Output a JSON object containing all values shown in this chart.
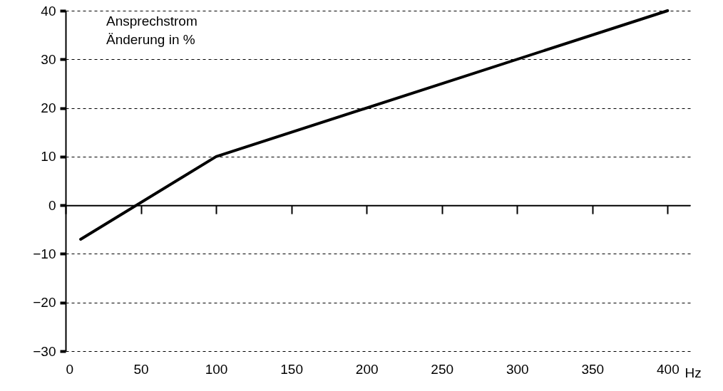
{
  "chart_data": {
    "type": "line",
    "ylabel": "Ansprechstrom\nÄnderung in %",
    "xlabel": "Hz",
    "x": [
      10,
      100,
      400
    ],
    "series": [
      {
        "color": "#000000",
        "values": [
          -7,
          10,
          40
        ]
      }
    ],
    "xlim": [
      0,
      415
    ],
    "xticks": [
      0,
      50,
      100,
      150,
      200,
      250,
      300,
      350,
      400
    ],
    "ylim": [
      -30,
      40
    ],
    "yticks": [
      -30,
      -20,
      -10,
      0,
      10,
      20,
      30,
      40
    ],
    "grid": "y",
    "line_style": "solid",
    "marker": "none"
  }
}
